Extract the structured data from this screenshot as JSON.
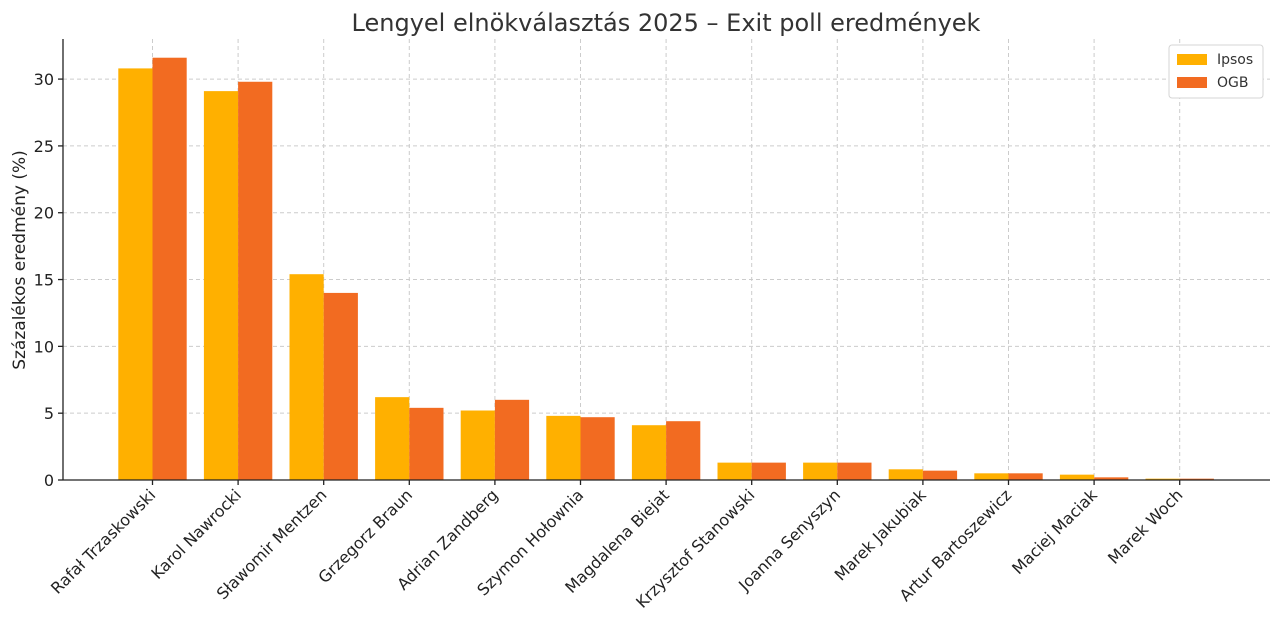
{
  "chart_data": {
    "type": "bar",
    "title": "Lengyel elnökválasztás 2025 – Exit poll eredmények",
    "xlabel": "",
    "ylabel": "Százalékos eredmény (%)",
    "ylim": [
      0,
      33
    ],
    "yticks": [
      0,
      5,
      10,
      15,
      20,
      25,
      30
    ],
    "grid": true,
    "legend_position": "top-right",
    "categories": [
      "Rafał Trzaskowski",
      "Karol Nawrocki",
      "Sławomir Mentzen",
      "Grzegorz Braun",
      "Adrian Zandberg",
      "Szymon Hołownia",
      "Magdalena Biejat",
      "Krzysztof Stanowski",
      "Joanna Senyszyn",
      "Marek Jakubiak",
      "Artur Bartoszewicz",
      "Maciej Maciak",
      "Marek Woch"
    ],
    "series": [
      {
        "name": "Ipsos",
        "color": "#FFB000",
        "values": [
          30.8,
          29.1,
          15.4,
          6.2,
          5.2,
          4.8,
          4.1,
          1.3,
          1.3,
          0.8,
          0.5,
          0.4,
          0.1
        ]
      },
      {
        "name": "OGB",
        "color": "#F26B21",
        "values": [
          31.6,
          29.8,
          14.0,
          5.4,
          6.0,
          4.7,
          4.4,
          1.3,
          1.3,
          0.7,
          0.5,
          0.2,
          0.1
        ]
      }
    ]
  }
}
